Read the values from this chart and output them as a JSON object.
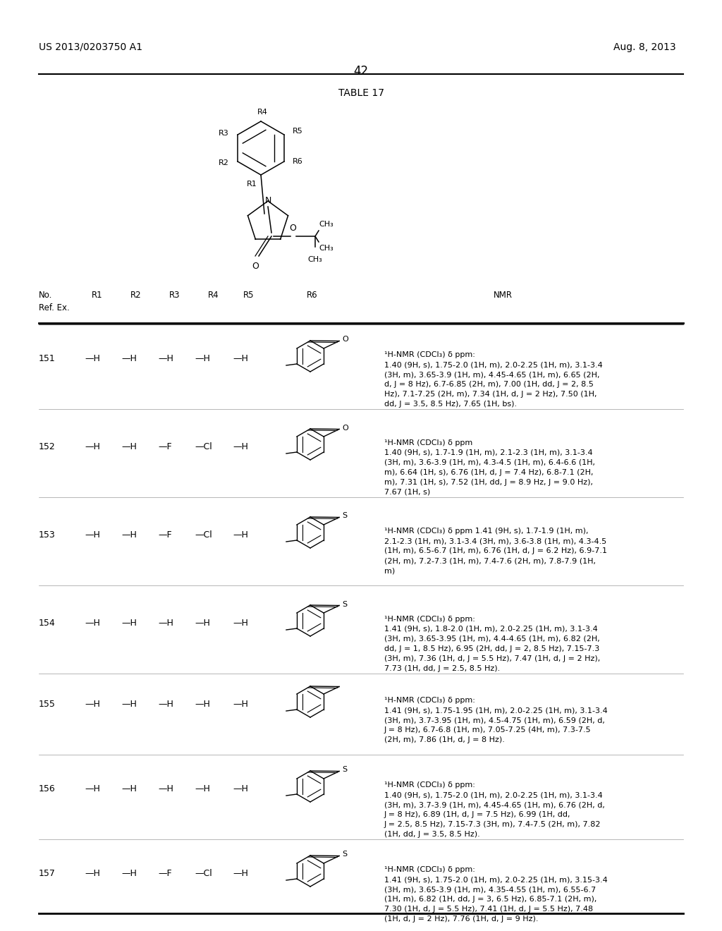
{
  "page_number": "42",
  "patent_number": "US 2013/0203750 A1",
  "patent_date": "Aug. 8, 2013",
  "table_title": "TABLE 17",
  "background_color": "#ffffff",
  "text_color": "#000000",
  "header_cols": [
    "No.",
    "R1",
    "R2",
    "R3",
    "R4",
    "R5",
    "R6",
    "NMR"
  ],
  "ref_label": "Ref. Ex.",
  "rows": [
    {
      "no": "151",
      "r1": "—H",
      "r2": "—H",
      "r3": "—H",
      "r4": "—H",
      "r5": "—H",
      "r6_type": "benzofuran_methyl",
      "nmr": "¹H-NMR (CDCl₃) δ ppm:\n1.40 (9H, s), 1.75-2.0 (1H, m), 2.0-2.25 (1H, m), 3.1-3.4\n(3H, m), 3.65-3.9 (1H, m), 4.45-4.65 (1H, m), 6.65 (2H,\nd, J = 8 Hz), 6.7-6.85 (2H, m), 7.00 (1H, dd, J = 2, 8.5\nHz), 7.1-7.25 (2H, m), 7.34 (1H, d, J = 2 Hz), 7.50 (1H,\ndd, J = 3.5, 8.5 Hz), 7.65 (1H, bs)."
    },
    {
      "no": "152",
      "r1": "—H",
      "r2": "—H",
      "r3": "—F",
      "r4": "—Cl",
      "r5": "—H",
      "r6_type": "benzofuran_methyl",
      "nmr": "¹H-NMR (CDCl₃) δ ppm\n1.40 (9H, s), 1.7-1.9 (1H, m), 2.1-2.3 (1H, m), 3.1-3.4\n(3H, m), 3.6-3.9 (1H, m), 4.3-4.5 (1H, m), 6.4-6.6 (1H,\nm), 6.64 (1H, s), 6.76 (1H, d, J = 7.4 Hz), 6.8-7.1 (2H,\nm), 7.31 (1H, s), 7.52 (1H, dd, J = 8.9 Hz, J = 9.0 Hz),\n7.67 (1H, s)"
    },
    {
      "no": "153",
      "r1": "—H",
      "r2": "—H",
      "r3": "—F",
      "r4": "—Cl",
      "r5": "—H",
      "r6_type": "benzothiophene_methyl",
      "nmr": "¹H-NMR (CDCl₃) δ ppm 1.41 (9H, s), 1.7-1.9 (1H, m),\n2.1-2.3 (1H, m), 3.1-3.4 (3H, m), 3.6-3.8 (1H, m), 4.3-4.5\n(1H, m), 6.5-6.7 (1H, m), 6.76 (1H, d, J = 6.2 Hz), 6.9-7.1\n(2H, m), 7.2-7.3 (1H, m), 7.4-7.6 (2H, m), 7.8-7.9 (1H,\nm)"
    },
    {
      "no": "154",
      "r1": "—H",
      "r2": "—H",
      "r3": "—H",
      "r4": "—H",
      "r5": "—H",
      "r6_type": "benzothiophene_methyl2",
      "nmr": "¹H-NMR (CDCl₃) δ ppm:\n1.41 (9H, s), 1.8-2.0 (1H, m), 2.0-2.25 (1H, m), 3.1-3.4\n(3H, m), 3.65-3.95 (1H, m), 4.4-4.65 (1H, m), 6.82 (2H,\ndd, J = 1, 8.5 Hz), 6.95 (2H, dd, J = 2, 8.5 Hz), 7.15-7.3\n(3H, m), 7.36 (1H, d, J = 5.5 Hz), 7.47 (1H, d, J = 2 Hz),\n7.73 (1H, dd, J = 2.5, 8.5 Hz)."
    },
    {
      "no": "155",
      "r1": "—H",
      "r2": "—H",
      "r3": "—H",
      "r4": "—H",
      "r5": "—H",
      "r6_type": "indene_methyl",
      "nmr": "¹H-NMR (CDCl₃) δ ppm:\n1.41 (9H, s), 1.75-1.95 (1H, m), 2.0-2.25 (1H, m), 3.1-3.4\n(3H, m), 3.7-3.95 (1H, m), 4.5-4.75 (1H, m), 6.59 (2H, d,\nJ = 8 Hz), 6.7-6.8 (1H, m), 7.05-7.25 (4H, m), 7.3-7.5\n(2H, m), 7.86 (1H, d, J = 8 Hz)."
    },
    {
      "no": "156",
      "r1": "—H",
      "r2": "—H",
      "r3": "—H",
      "r4": "—H",
      "r5": "—H",
      "r6_type": "benzothiophene_methyl3",
      "nmr": "¹H-NMR (CDCl₃) δ ppm:\n1.40 (9H, s), 1.75-2.0 (1H, m), 2.0-2.25 (1H, m), 3.1-3.4\n(3H, m), 3.7-3.9 (1H, m), 4.45-4.65 (1H, m), 6.76 (2H, d,\nJ = 8 Hz), 6.89 (1H, d, J = 7.5 Hz), 6.99 (1H, dd,\nJ = 2.5, 8.5 Hz), 7.15-7.3 (3H, m), 7.4-7.5 (2H, m), 7.82\n(1H, dd, J = 3.5, 8.5 Hz)."
    },
    {
      "no": "157",
      "r1": "—H",
      "r2": "—H",
      "r3": "—F",
      "r4": "—Cl",
      "r5": "—H",
      "r6_type": "benzothiophene_methyl4",
      "nmr": "¹H-NMR (CDCl₃) δ ppm:\n1.41 (9H, s), 1.75-2.0 (1H, m), 2.0-2.25 (1H, m), 3.15-3.4\n(3H, m), 3.65-3.9 (1H, m), 4.35-4.55 (1H, m), 6.55-6.7\n(1H, m), 6.82 (1H, dd, J = 3, 6.5 Hz), 6.85-7.1 (2H, m),\n7.30 (1H, d, J = 5.5 Hz), 7.41 (1H, d, J = 5.5 Hz), 7.48\n(1H, d, J = 2 Hz), 7.76 (1H, d, J = 9 Hz)."
    }
  ]
}
